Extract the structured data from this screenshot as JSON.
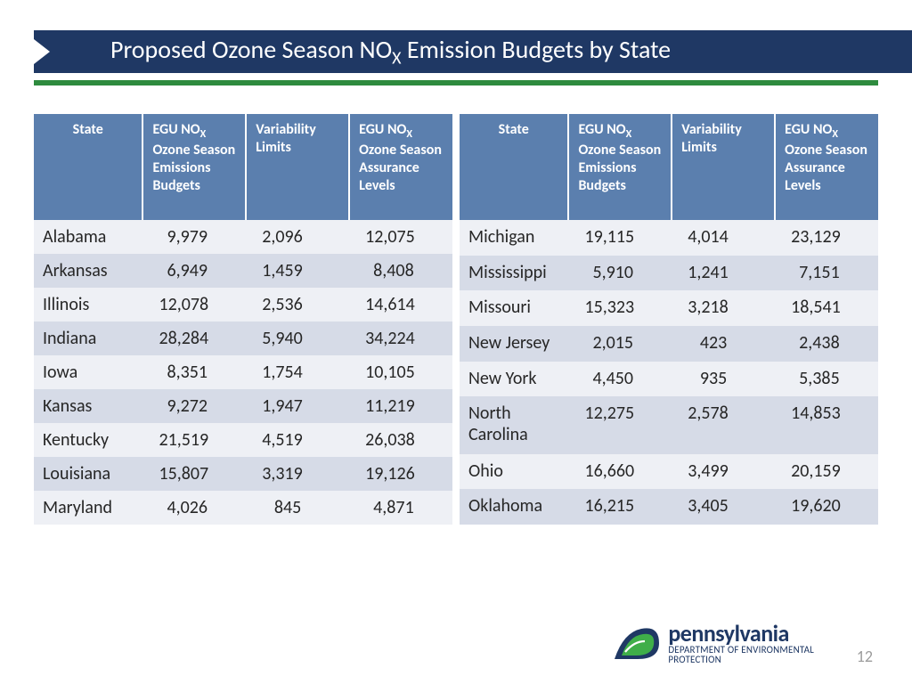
{
  "title_html": "Proposed Ozone Season NO<sub>X</sub> Emission Budgets by State",
  "headers": {
    "state": "State",
    "budgets_html": "EGU NO<sub>X</sub> Ozone Season Emissions Budgets",
    "variability": "Variability Limits",
    "assurance_html": "EGU NO<sub>X</sub> Ozone Season Assurance Levels"
  },
  "left_rows": [
    {
      "state": "Alabama",
      "budget": "  9,979",
      "var": "2,096",
      "assure": "12,075"
    },
    {
      "state": "Arkansas",
      "budget": "  6,949",
      "var": "1,459",
      "assure": "  8,408"
    },
    {
      "state": "Illinois",
      "budget": "12,078",
      "var": "2,536",
      "assure": "14,614"
    },
    {
      "state": "Indiana",
      "budget": "28,284",
      "var": "5,940",
      "assure": "34,224"
    },
    {
      "state": "Iowa",
      "budget": "  8,351",
      "var": "1,754",
      "assure": "10,105"
    },
    {
      "state": "Kansas",
      "budget": "  9,272",
      "var": "1,947",
      "assure": "11,219"
    },
    {
      "state": "Kentucky",
      "budget": "21,519",
      "var": "4,519",
      "assure": "26,038"
    },
    {
      "state": "Louisiana",
      "budget": "15,807",
      "var": "3,319",
      "assure": "19,126"
    },
    {
      "state": "Maryland",
      "budget": "  4,026",
      "var": "   845",
      "assure": "  4,871"
    }
  ],
  "right_rows": [
    {
      "state": "Michigan",
      "budget": "19,115",
      "var": "4,014",
      "assure": "23,129"
    },
    {
      "state": "Mississippi",
      "budget": "  5,910",
      "var": "1,241",
      "assure": "  7,151"
    },
    {
      "state": "Missouri",
      "budget": "15,323",
      "var": "3,218",
      "assure": "18,541"
    },
    {
      "state": "New Jersey",
      "budget": "  2,015",
      "var": "   423",
      "assure": "  2,438"
    },
    {
      "state": "New York",
      "budget": "  4,450",
      "var": "   935",
      "assure": "  5,385"
    },
    {
      "state": "North Carolina",
      "budget": "12,275",
      "var": "2,578",
      "assure": "14,853"
    },
    {
      "state": "Ohio",
      "budget": "16,660",
      "var": "3,499",
      "assure": "20,159"
    },
    {
      "state": "Oklahoma",
      "budget": "16,215",
      "var": "3,405",
      "assure": "19,620"
    }
  ],
  "footer": {
    "org_name": "pennsylvania",
    "dept_line1": "DEPARTMENT OF ENVIRONMENTAL",
    "dept_line2": "PROTECTION",
    "page_number": "12"
  },
  "colors": {
    "title_bar": "#1f3864",
    "green_rule": "#2e8b3e",
    "header_bg": "#5b7fae",
    "row_odd": "#eef0f5",
    "row_even": "#d6dbe7"
  }
}
